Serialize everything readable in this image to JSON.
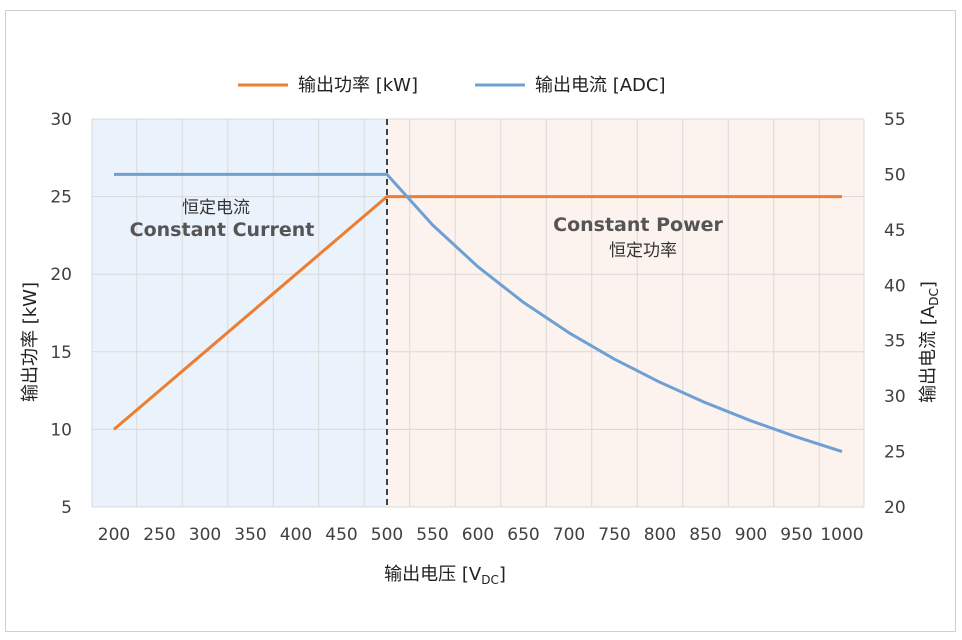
{
  "chart_data": {
    "type": "line",
    "x": [
      200,
      250,
      300,
      350,
      400,
      450,
      500,
      550,
      600,
      650,
      700,
      750,
      800,
      850,
      900,
      950,
      1000
    ],
    "x_ticks": [
      "200",
      "250",
      "300",
      "350",
      "400",
      "450",
      "500",
      "550",
      "600",
      "650",
      "700",
      "750",
      "800",
      "850",
      "900",
      "950",
      "1000"
    ],
    "xlim": [
      200,
      1000
    ],
    "xlabel": "输出电压 [V",
    "xlabel_sub": "DC",
    "xlabel_end": "]",
    "y_left": {
      "label": "输出功率 [kW]",
      "ylim": [
        5,
        30
      ],
      "ticks": [
        "30",
        "25",
        "20",
        "15",
        "10",
        "5"
      ],
      "tick_values": [
        30,
        25,
        20,
        15,
        10,
        5
      ]
    },
    "y_right": {
      "label": "输出电流 [A",
      "label_sub": "DC",
      "label_end": "]",
      "ylim": [
        20,
        55
      ],
      "ticks": [
        "55",
        "50",
        "45",
        "40",
        "35",
        "30",
        "25",
        "20"
      ],
      "tick_values": [
        55,
        50,
        45,
        40,
        35,
        30,
        25,
        20
      ]
    },
    "series": [
      {
        "name": "输出功率 [kW]",
        "axis": "left",
        "color": "#ED7D31",
        "x": [
          200,
          250,
          300,
          350,
          400,
          450,
          500,
          550,
          600,
          650,
          700,
          750,
          800,
          850,
          900,
          950,
          1000
        ],
        "values": [
          10,
          12.5,
          15,
          17.5,
          20,
          22.5,
          25,
          25,
          25,
          25,
          25,
          25,
          25,
          25,
          25,
          25,
          25
        ]
      },
      {
        "name": "输出电流 [ADC]",
        "axis": "right",
        "color": "#6FA0D4",
        "x": [
          200,
          250,
          300,
          350,
          400,
          450,
          500,
          550,
          600,
          650,
          700,
          750,
          800,
          850,
          900,
          950,
          1000
        ],
        "values": [
          50,
          50,
          50,
          50,
          50,
          50,
          50,
          45.45,
          41.67,
          38.46,
          35.71,
          33.33,
          31.25,
          29.41,
          27.78,
          26.32,
          25
        ]
      }
    ],
    "divider_x": 500,
    "regions": [
      {
        "label_cn": "恒定电流",
        "label_en": "Constant Current",
        "x_from": 200,
        "x_to": 500,
        "color": "#EAF3FB"
      },
      {
        "label_cn": "恒定功率",
        "label_en": "Constant Power",
        "x_from": 500,
        "x_to": 1000,
        "color": "#FCF3EE"
      }
    ],
    "grid": true,
    "legend": "top-center"
  }
}
